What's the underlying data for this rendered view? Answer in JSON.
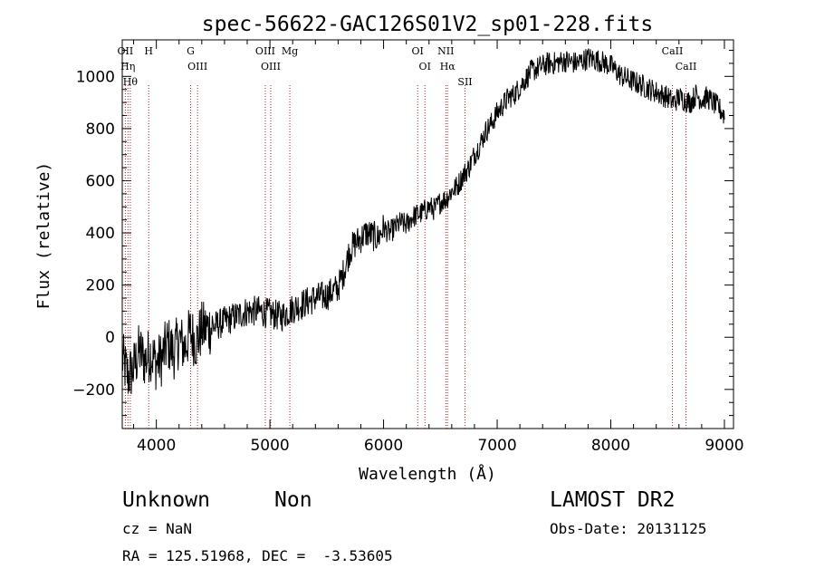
{
  "chart_data": {
    "type": "line",
    "title": "spec-56622-GAC126S01V2_sp01-228.fits",
    "xlabel": "Wavelength (Å)",
    "ylabel": "Flux (relative)",
    "xlim": [
      3700,
      9080
    ],
    "ylim": [
      -350,
      1140
    ],
    "x_ticks": [
      4000,
      5000,
      6000,
      7000,
      8000,
      9000
    ],
    "y_ticks": [
      -200,
      0,
      200,
      400,
      600,
      800,
      1000
    ],
    "grid": false,
    "series": [
      {
        "x": [
          3700,
          3750,
          3800,
          3850,
          3900,
          3950,
          4000,
          4050,
          4100,
          4150,
          4200,
          4250,
          4300,
          4350,
          4400,
          4500,
          4600,
          4700,
          4800,
          4900,
          5000,
          5100,
          5200,
          5300,
          5400,
          5500,
          5600,
          5650,
          5700,
          5750,
          5800,
          5850,
          5900,
          5950,
          6000,
          6050,
          6100,
          6150,
          6200,
          6250,
          6300,
          6350,
          6400,
          6450,
          6500,
          6550,
          6600,
          6650,
          6700,
          6750,
          6800,
          6850,
          6900,
          6950,
          7000,
          7050,
          7100,
          7150,
          7200,
          7250,
          7300,
          7350,
          7400,
          7450,
          7500,
          7600,
          7700,
          7800,
          7900,
          8000,
          8100,
          8200,
          8300,
          8400,
          8500,
          8550,
          8600,
          8650,
          8700,
          8750,
          8800,
          8850,
          8900,
          8950,
          9000
        ],
        "y": [
          -80,
          -150,
          -120,
          -50,
          -90,
          -60,
          -100,
          -80,
          -20,
          -60,
          -10,
          -40,
          20,
          -20,
          30,
          40,
          60,
          80,
          100,
          100,
          90,
          80,
          110,
          130,
          150,
          160,
          190,
          250,
          330,
          360,
          380,
          400,
          390,
          380,
          420,
          400,
          420,
          440,
          430,
          460,
          470,
          480,
          500,
          490,
          520,
          530,
          560,
          580,
          620,
          650,
          700,
          740,
          790,
          820,
          860,
          890,
          920,
          930,
          960,
          990,
          1020,
          1030,
          1040,
          1050,
          1050,
          1060,
          1050,
          1070,
          1060,
          1040,
          1000,
          980,
          960,
          940,
          920,
          900,
          920,
          910,
          900,
          930,
          910,
          920,
          900,
          880,
          850
        ]
      }
    ],
    "line_markers": [
      {
        "x": 3727,
        "label": "OII"
      },
      {
        "x": 3750,
        "label": "Hη"
      },
      {
        "x": 3771,
        "label": "Hθ"
      },
      {
        "x": 3933,
        "label": "H"
      },
      {
        "x": 4302,
        "label": "G"
      },
      {
        "x": 4363,
        "label": "OIII"
      },
      {
        "x": 4959,
        "label": "OIII"
      },
      {
        "x": 5007,
        "label": "OIII"
      },
      {
        "x": 5175,
        "label": "Mg"
      },
      {
        "x": 6300,
        "label": "OI"
      },
      {
        "x": 6364,
        "label": "OI"
      },
      {
        "x": 6548,
        "label": "NII"
      },
      {
        "x": 6563,
        "label": "Hα"
      },
      {
        "x": 6717,
        "label": "SII"
      },
      {
        "x": 8542,
        "label": "CaII"
      },
      {
        "x": 8662,
        "label": "CaII"
      }
    ]
  },
  "info": {
    "class_text": "Unknown",
    "subclass_text": "Non",
    "survey_text": "LAMOST DR2",
    "cz_text": "cz = NaN",
    "obs_date_text": "Obs-Date: 20131125",
    "coords_text": "RA = 125.51968, DEC =  -3.53605"
  }
}
